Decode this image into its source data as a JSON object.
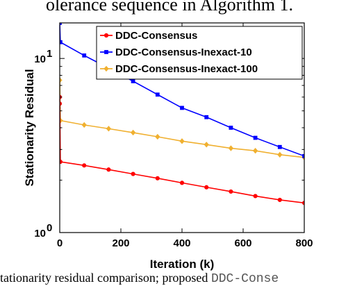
{
  "top_caption": "olerance sequence in Algorithm 1.",
  "bottom_caption": {
    "prefix": "tationarity residual comparison; proposed ",
    "mono": "DDC-Conse"
  },
  "chart_data": {
    "type": "line",
    "title": "",
    "xlabel": "Iteration (k)",
    "ylabel": "Stationarity Residual",
    "xlim": [
      0,
      800
    ],
    "ylim": [
      1,
      16
    ],
    "yscale": "log",
    "xticks": [
      0,
      200,
      400,
      600,
      800
    ],
    "yticks": [
      {
        "value": 1,
        "base": "10",
        "exp": "0"
      },
      {
        "value": 10,
        "base": "10",
        "exp": "1"
      }
    ],
    "legend_position": "top-right",
    "grid": false,
    "series": [
      {
        "name": "DDC-Consensus",
        "color": "#ff0000",
        "marker": "circle",
        "x": [
          0,
          0,
          2,
          80,
          160,
          240,
          320,
          400,
          480,
          560,
          640,
          720,
          800
        ],
        "y": [
          5.5,
          6.0,
          2.55,
          2.43,
          2.3,
          2.17,
          2.05,
          1.93,
          1.82,
          1.72,
          1.62,
          1.54,
          1.48
        ]
      },
      {
        "name": "DDC-Consensus-Inexact-10",
        "color": "#0000ff",
        "marker": "square",
        "x": [
          0,
          2,
          80,
          160,
          240,
          320,
          400,
          480,
          560,
          640,
          720,
          800
        ],
        "y": [
          16,
          12.4,
          10.4,
          8.8,
          7.4,
          6.2,
          5.2,
          4.6,
          4.0,
          3.5,
          3.1,
          2.75
        ]
      },
      {
        "name": "DDC-Consensus-Inexact-100",
        "color": "#f0b030",
        "marker": "diamond",
        "x": [
          0,
          2,
          80,
          160,
          240,
          320,
          400,
          480,
          560,
          640,
          720,
          800
        ],
        "y": [
          7.5,
          4.4,
          4.15,
          3.95,
          3.75,
          3.55,
          3.35,
          3.2,
          3.05,
          2.95,
          2.8,
          2.7
        ]
      }
    ]
  }
}
